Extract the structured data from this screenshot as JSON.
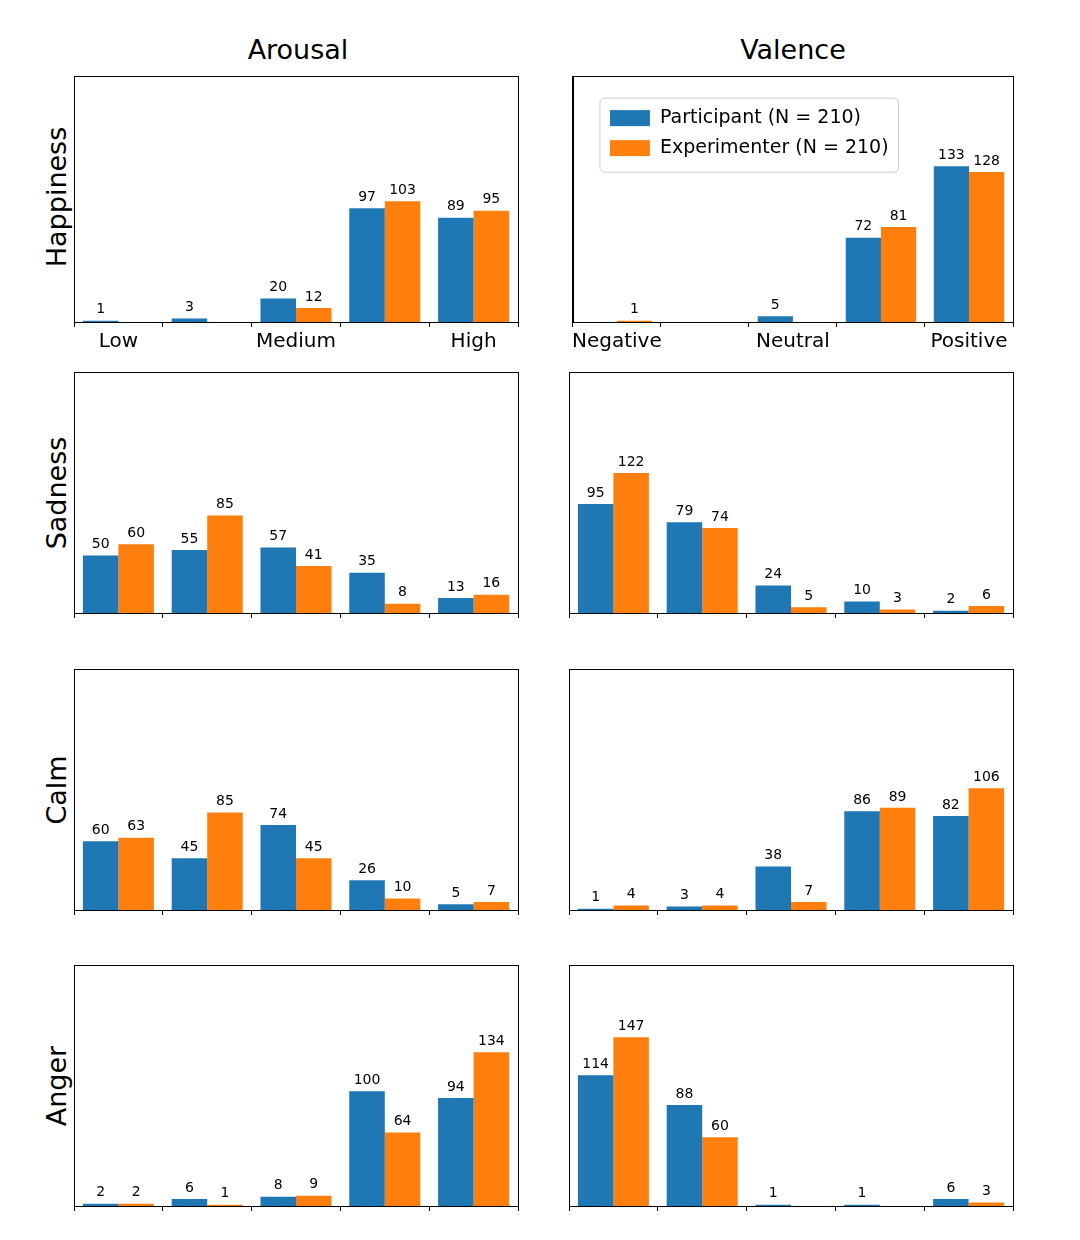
{
  "columns": [
    "Arousal",
    "Valence"
  ],
  "rows": [
    "Happiness",
    "Sadness",
    "Calm",
    "Anger"
  ],
  "chart_data": [
    {
      "type": "bar",
      "categories": [
        "Low",
        null,
        "Medium",
        null,
        "High"
      ],
      "series": [
        {
          "name": "Participant (N = 210)",
          "color": "#1f77b4",
          "values": [
            1,
            3,
            20,
            97,
            89
          ]
        },
        {
          "name": "Experimenter (N = 210)",
          "color": "#ff7f0e",
          "values": [
            null,
            null,
            12,
            103,
            95
          ]
        }
      ],
      "ylim": [
        0,
        210
      ],
      "yticks": [],
      "data_labels": true,
      "tick_labels": "x",
      "grid": false
    },
    {
      "type": "bar",
      "categories": [
        "Negative",
        null,
        "Neutral",
        null,
        "Positive"
      ],
      "series": [
        {
          "name": "Participant (N = 210)",
          "color": "#1f77b4",
          "values": [
            null,
            null,
            5,
            72,
            133
          ]
        },
        {
          "name": "Experimenter (N = 210)",
          "color": "#ff7f0e",
          "values": [
            1,
            null,
            null,
            81,
            128
          ]
        }
      ],
      "ylim": [
        0,
        210
      ],
      "yticks": [],
      "data_labels": true,
      "tick_labels": "x",
      "grid": false,
      "legend": "upper right"
    },
    {
      "type": "bar",
      "categories": [
        null,
        null,
        null,
        null,
        null
      ],
      "series": [
        {
          "name": "Participant (N = 210)",
          "color": "#1f77b4",
          "values": [
            50,
            55,
            57,
            35,
            13
          ]
        },
        {
          "name": "Experimenter (N = 210)",
          "color": "#ff7f0e",
          "values": [
            60,
            85,
            41,
            8,
            16
          ]
        }
      ],
      "ylim": [
        0,
        210
      ],
      "yticks": [],
      "data_labels": true,
      "tick_labels": false,
      "grid": false
    },
    {
      "type": "bar",
      "categories": [
        null,
        null,
        null,
        null,
        null
      ],
      "series": [
        {
          "name": "Participant (N = 210)",
          "color": "#1f77b4",
          "values": [
            95,
            79,
            24,
            10,
            2
          ]
        },
        {
          "name": "Experimenter (N = 210)",
          "color": "#ff7f0e",
          "values": [
            122,
            74,
            5,
            3,
            6
          ]
        }
      ],
      "ylim": [
        0,
        210
      ],
      "yticks": [],
      "data_labels": true,
      "tick_labels": false,
      "grid": false
    },
    {
      "type": "bar",
      "categories": [
        null,
        null,
        null,
        null,
        null
      ],
      "series": [
        {
          "name": "Participant (N = 210)",
          "color": "#1f77b4",
          "values": [
            60,
            45,
            74,
            26,
            5
          ]
        },
        {
          "name": "Experimenter (N = 210)",
          "color": "#ff7f0e",
          "values": [
            63,
            85,
            45,
            10,
            7
          ]
        }
      ],
      "ylim": [
        0,
        210
      ],
      "yticks": [],
      "data_labels": true,
      "tick_labels": false,
      "grid": false
    },
    {
      "type": "bar",
      "categories": [
        null,
        null,
        null,
        null,
        null
      ],
      "series": [
        {
          "name": "Participant (N = 210)",
          "color": "#1f77b4",
          "values": [
            1,
            3,
            38,
            86,
            82
          ]
        },
        {
          "name": "Experimenter (N = 210)",
          "color": "#ff7f0e",
          "values": [
            4,
            4,
            7,
            89,
            106
          ]
        }
      ],
      "ylim": [
        0,
        210
      ],
      "yticks": [],
      "data_labels": true,
      "tick_labels": false,
      "grid": false
    },
    {
      "type": "bar",
      "categories": [
        null,
        null,
        null,
        null,
        null
      ],
      "series": [
        {
          "name": "Participant (N = 210)",
          "color": "#1f77b4",
          "values": [
            2,
            6,
            8,
            100,
            94
          ]
        },
        {
          "name": "Experimenter (N = 210)",
          "color": "#ff7f0e",
          "values": [
            2,
            1,
            9,
            64,
            134
          ]
        }
      ],
      "ylim": [
        0,
        210
      ],
      "yticks": [],
      "data_labels": true,
      "tick_labels": false,
      "grid": false
    },
    {
      "type": "bar",
      "categories": [
        null,
        null,
        null,
        null,
        null
      ],
      "series": [
        {
          "name": "Participant (N = 210)",
          "color": "#1f77b4",
          "values": [
            114,
            88,
            1,
            1,
            6
          ]
        },
        {
          "name": "Experimenter (N = 210)",
          "color": "#ff7f0e",
          "values": [
            147,
            60,
            null,
            null,
            3
          ]
        }
      ],
      "ylim": [
        0,
        210
      ],
      "yticks": [],
      "data_labels": true,
      "tick_labels": false,
      "grid": false
    }
  ]
}
